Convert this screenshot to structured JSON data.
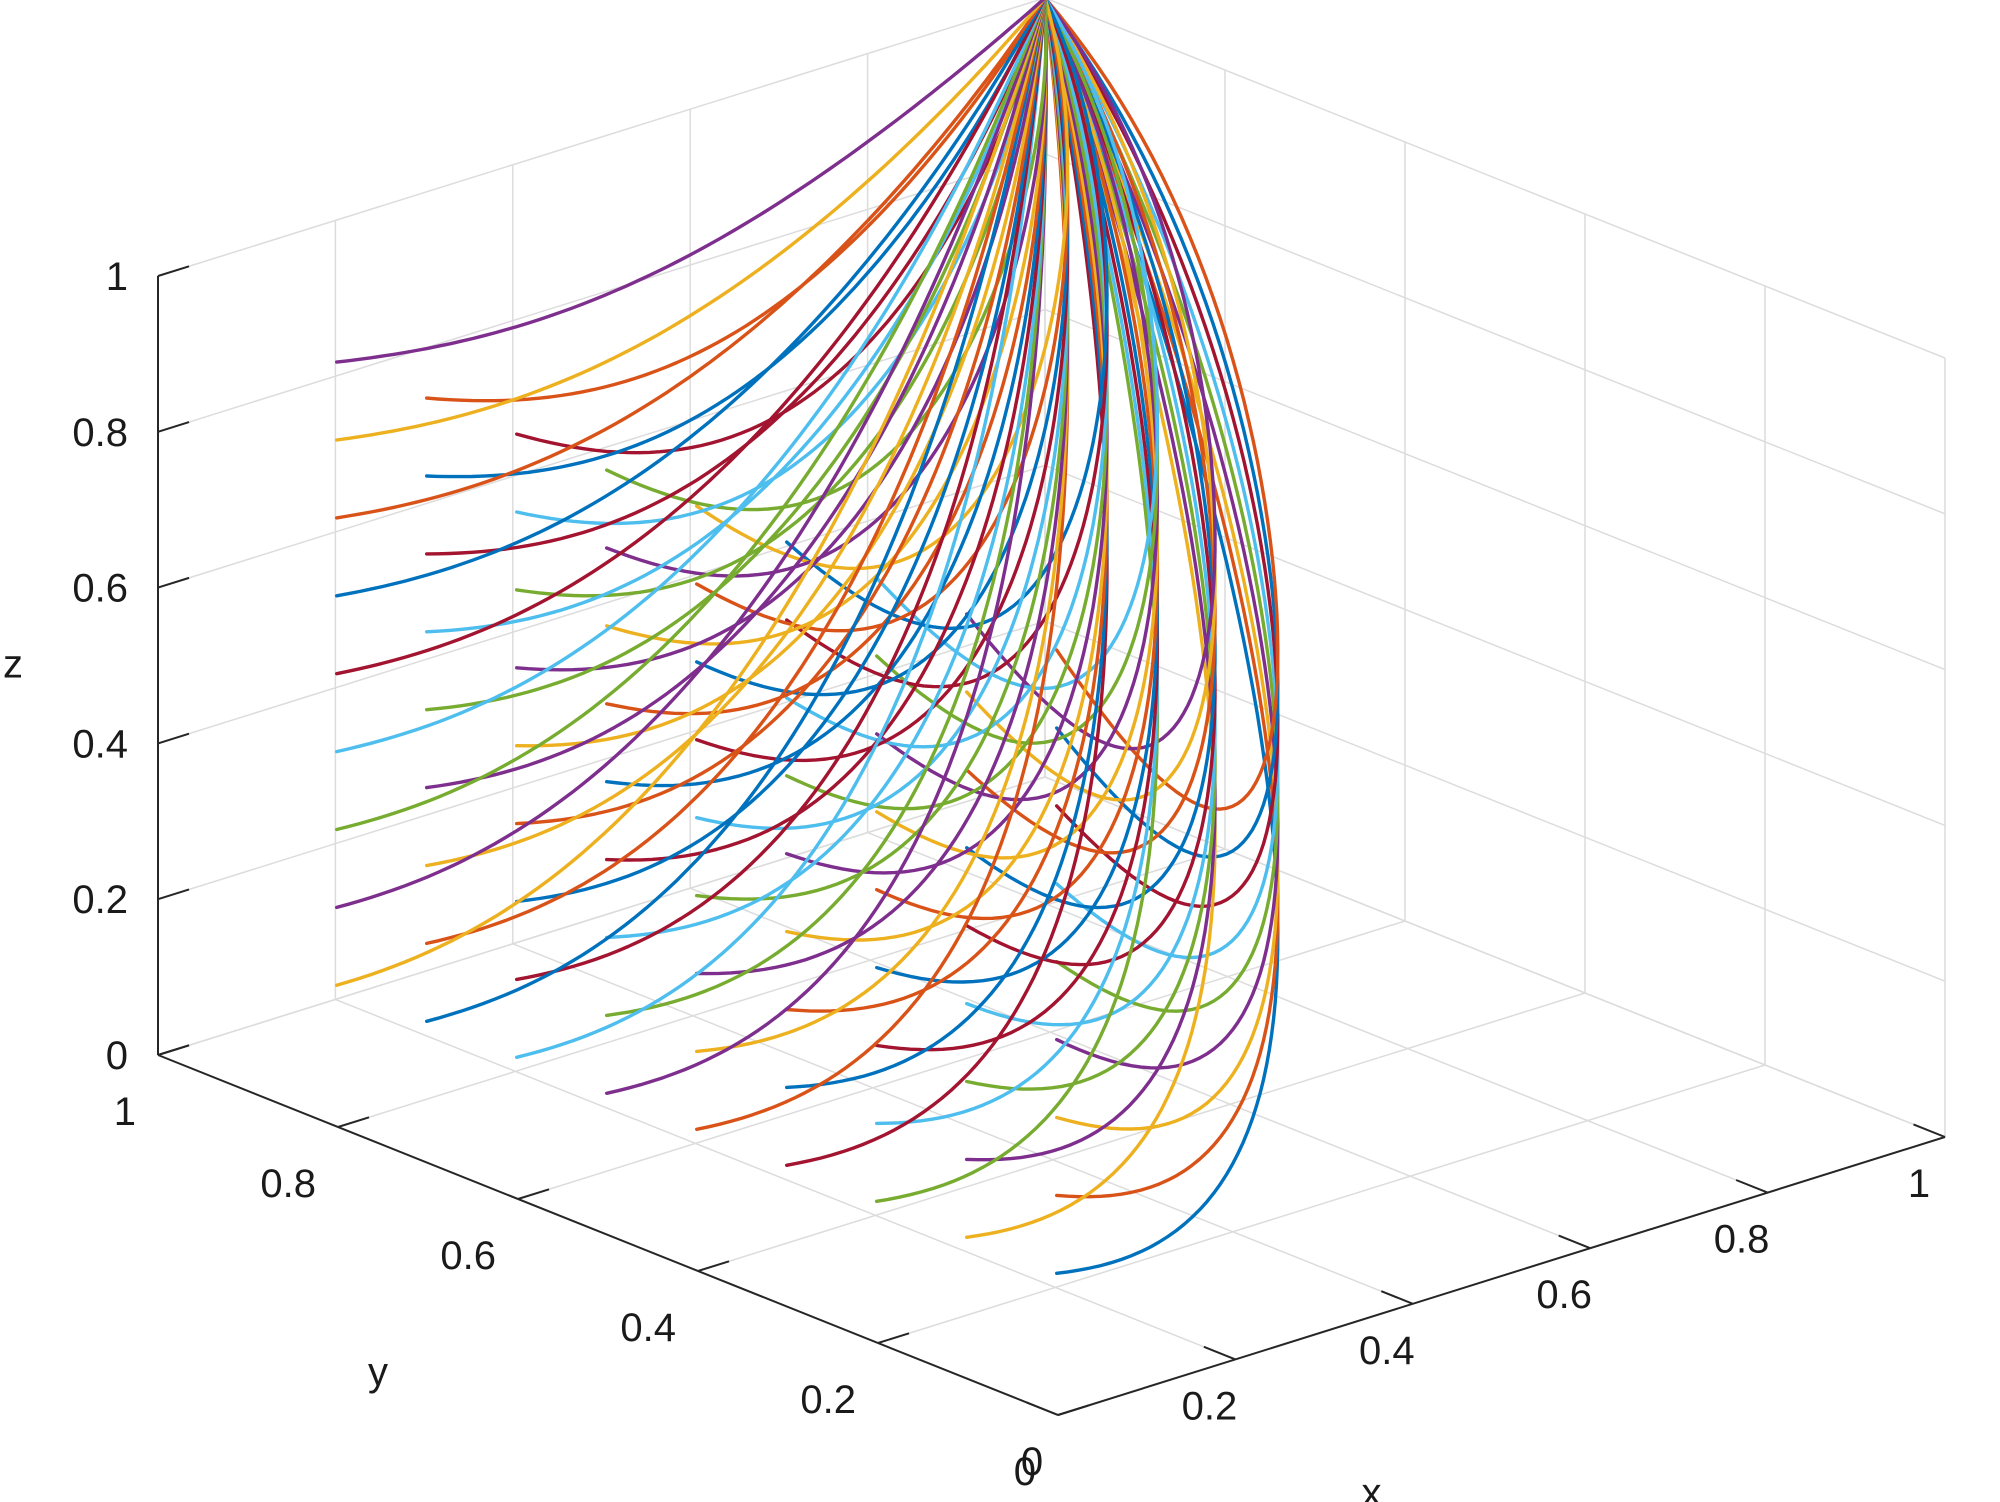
{
  "chart_data": {
    "type": "line",
    "projection": "3d",
    "xlabel": "x",
    "ylabel": "y",
    "zlabel": "z",
    "xlim": [
      0,
      1
    ],
    "ylim": [
      0,
      1
    ],
    "zlim": [
      0,
      1
    ],
    "grid": true,
    "x_ticks": [
      "0",
      "0.2",
      "0.4",
      "0.6",
      "0.8",
      "1"
    ],
    "y_ticks": [
      "0",
      "0.2",
      "0.4",
      "0.6",
      "0.8",
      "1"
    ],
    "z_ticks": [
      "0",
      "0.2",
      "0.4",
      "0.6",
      "0.8",
      "1"
    ],
    "x_tick_values": [
      0,
      0.2,
      0.4,
      0.6,
      0.8,
      1
    ],
    "y_tick_values": [
      0,
      0.2,
      0.4,
      0.6,
      0.8,
      1
    ],
    "z_tick_values": [
      0,
      0.2,
      0.4,
      0.6,
      0.8,
      1
    ],
    "series_colors": [
      "#0072BD",
      "#D95319",
      "#EDB120",
      "#7E2F8E",
      "#77AC30",
      "#4DBEEE",
      "#A2142F"
    ],
    "convergence_point": [
      1,
      1,
      1
    ],
    "initial_y_values": [
      0.1,
      0.2,
      0.3,
      0.4,
      0.5,
      0.6,
      0.7,
      0.8,
      0.9
    ],
    "initial_z_values": [
      0.1,
      0.2,
      0.3,
      0.4,
      0.5,
      0.6,
      0.7,
      0.8,
      0.9
    ],
    "initial_x_value": 0.1,
    "trajectory_count": 81
  }
}
